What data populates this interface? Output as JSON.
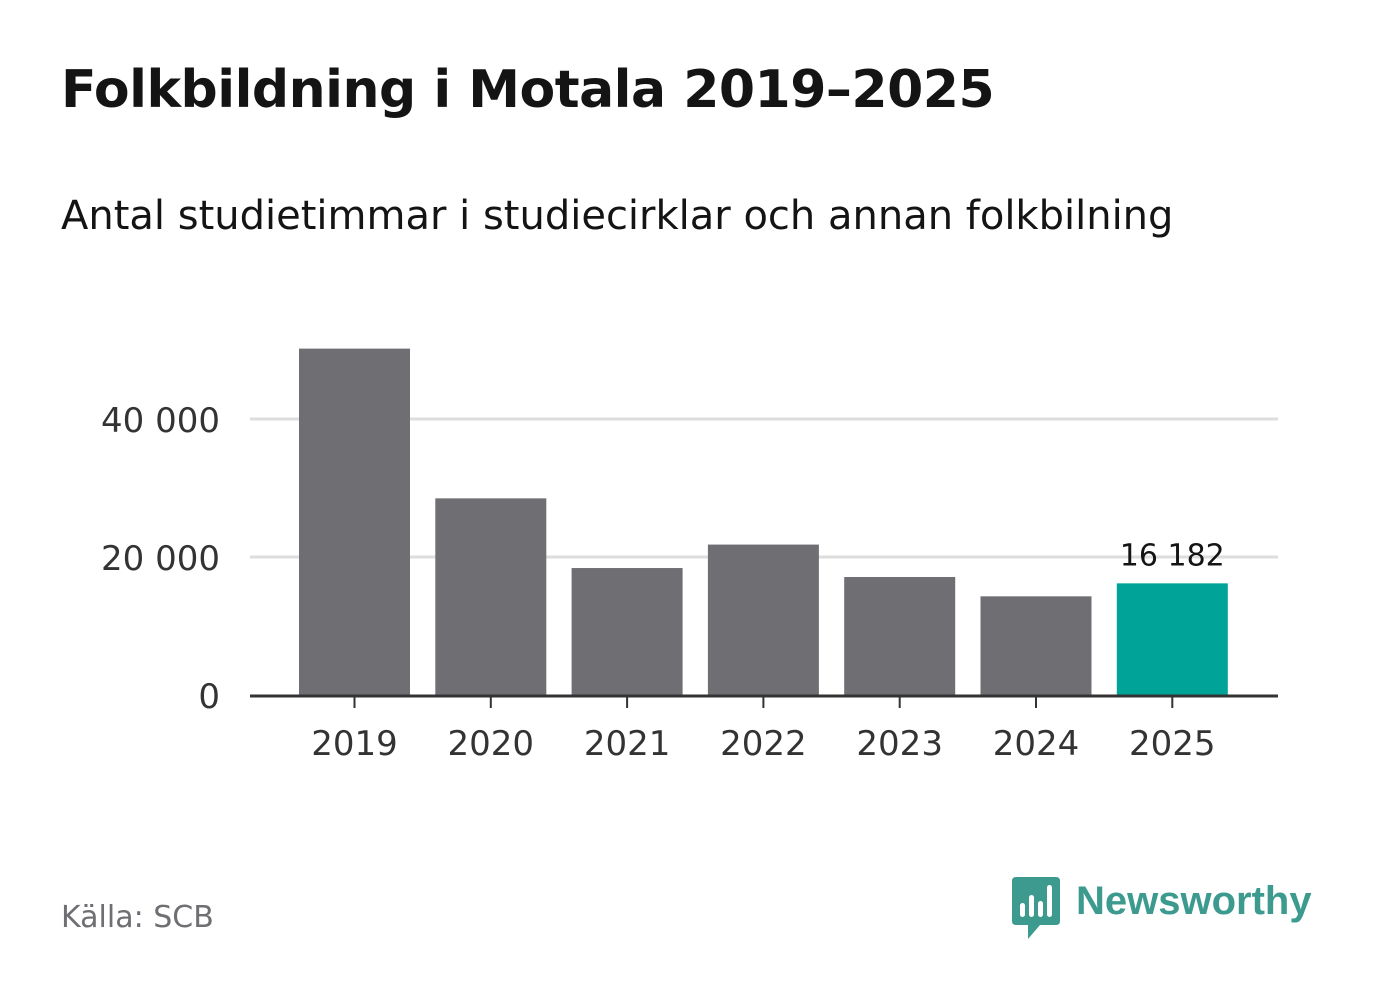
{
  "header": {
    "title": "Folkbildning i Motala 2019–2025",
    "subtitle": "Antal studietimmar i studiecirklar och annan folkbilning"
  },
  "footer": {
    "source": "Källa: SCB",
    "brand": "Newsworthy",
    "brand_icon": "newsworthy-logo-icon"
  },
  "colors": {
    "bar_default": "#6f6e73",
    "bar_highlight": "#00a398",
    "grid": "#dddddd",
    "axis": "#333333",
    "text": "#141414",
    "muted": "#6f6e73",
    "brand": "#3c9a8f"
  },
  "chart_data": {
    "type": "bar",
    "title": "Folkbildning i Motala 2019–2025",
    "subtitle": "Antal studietimmar i studiecirklar och annan folkbilning",
    "xlabel": "",
    "ylabel": "",
    "categories": [
      "2019",
      "2020",
      "2021",
      "2022",
      "2023",
      "2024",
      "2025"
    ],
    "values": [
      50200,
      28500,
      18400,
      21800,
      17100,
      14300,
      16182
    ],
    "highlight_index": 6,
    "data_labels": [
      {
        "index": 6,
        "text": "16 182"
      }
    ],
    "ylim": [
      0,
      52000
    ],
    "yticks": [
      {
        "value": 0,
        "label": "0"
      },
      {
        "value": 20000,
        "label": "20 000"
      },
      {
        "value": 40000,
        "label": "40 000"
      }
    ],
    "grid": true,
    "legend": "none"
  }
}
